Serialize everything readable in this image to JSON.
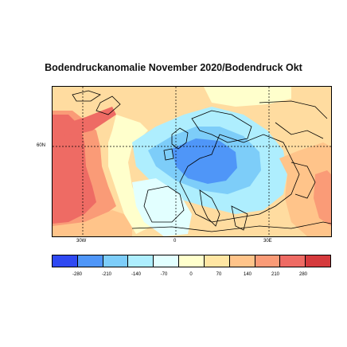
{
  "title": "Bodendruckanomalie November 2020/Bodendruck Okt",
  "axis": {
    "lon_labels": [
      "30W",
      "0",
      "30E"
    ],
    "lat_labels": [
      "60N"
    ]
  },
  "colorbar": {
    "colors": [
      "#2f49f2",
      "#4f96f8",
      "#7dcdf9",
      "#aeeefe",
      "#e2ffff",
      "#ffffcc",
      "#ffe6a3",
      "#ffc48a",
      "#fa9b77",
      "#ee6b64",
      "#d53a3d"
    ],
    "tick_labels": [
      "-280",
      "-210",
      "-140",
      "-70",
      "0",
      "70",
      "140",
      "210",
      "280"
    ]
  },
  "map_colors": {
    "strong_high": "#ee6b64",
    "high": "#fa9b77",
    "moderate_high": "#ffc48a",
    "weak_high": "#ffdca0",
    "neutral_high": "#ffffcc",
    "neutral_low": "#e2ffff",
    "weak_low": "#aeeefe",
    "moderate_low": "#7dcdf9",
    "strong_low": "#4f96f8"
  }
}
